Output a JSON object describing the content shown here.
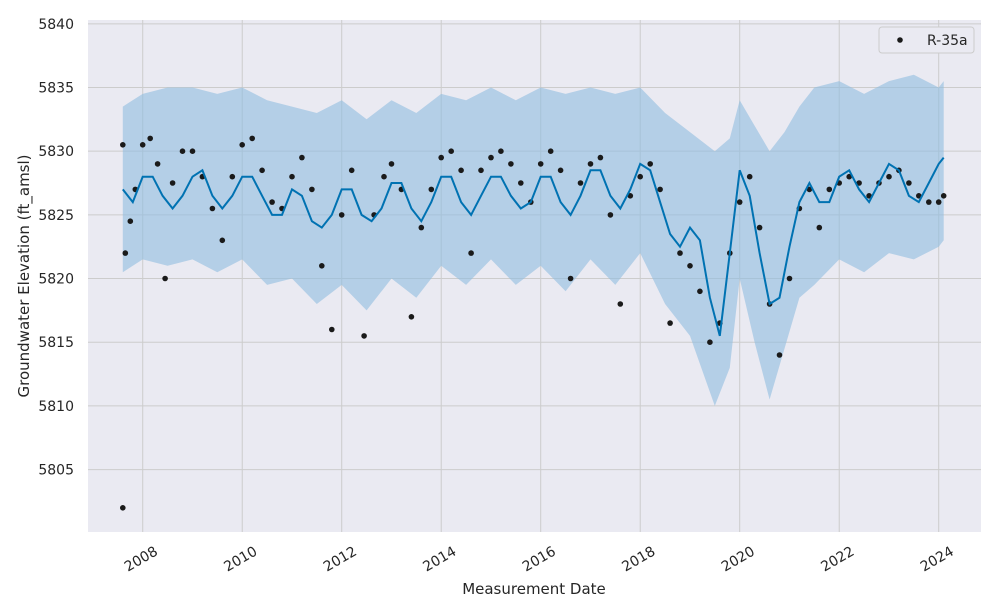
{
  "chart_data": {
    "type": "line",
    "xlabel": "Measurement Date",
    "ylabel": "Groundwater Elevation (ft_amsl)",
    "xlim": [
      2006.9,
      2024.85
    ],
    "ylim": [
      5800.1,
      5840.3
    ],
    "x_ticks": [
      {
        "value": 2008,
        "label": "2008"
      },
      {
        "value": 2010,
        "label": "2010"
      },
      {
        "value": 2012,
        "label": "2012"
      },
      {
        "value": 2014,
        "label": "2014"
      },
      {
        "value": 2016,
        "label": "2016"
      },
      {
        "value": 2018,
        "label": "2018"
      },
      {
        "value": 2020,
        "label": "2020"
      },
      {
        "value": 2022,
        "label": "2022"
      },
      {
        "value": 2024,
        "label": "2024"
      }
    ],
    "y_ticks": [
      {
        "value": 5805,
        "label": "5805"
      },
      {
        "value": 5810,
        "label": "5810"
      },
      {
        "value": 5815,
        "label": "5815"
      },
      {
        "value": 5820,
        "label": "5820"
      },
      {
        "value": 5825,
        "label": "5825"
      },
      {
        "value": 5830,
        "label": "5830"
      },
      {
        "value": 5835,
        "label": "5835"
      },
      {
        "value": 5840,
        "label": "5840"
      }
    ],
    "grid": true,
    "legend_position": "top-right",
    "colors": {
      "background": "#eaeaf2",
      "grid": "#cccccc",
      "forecast": "#0072b2",
      "band": "#8fbde0",
      "observed": "#1a1a1a"
    },
    "series": [
      {
        "name": "R-35a",
        "kind": "observed",
        "x": [
          2007.6,
          2007.65,
          2007.75,
          2007.85,
          2008.0,
          2008.15,
          2008.3,
          2008.45,
          2008.6,
          2008.8,
          2009.0,
          2009.2,
          2009.4,
          2009.6,
          2009.8,
          2010.0,
          2010.2,
          2010.4,
          2010.6,
          2010.8,
          2011.0,
          2011.2,
          2011.4,
          2011.6,
          2011.8,
          2012.0,
          2012.2,
          2012.45,
          2012.65,
          2012.85,
          2013.0,
          2013.2,
          2013.4,
          2013.6,
          2013.8,
          2014.0,
          2014.2,
          2014.4,
          2014.6,
          2014.8,
          2015.0,
          2015.2,
          2015.4,
          2015.6,
          2015.8,
          2016.0,
          2016.2,
          2016.4,
          2016.6,
          2016.8,
          2017.0,
          2017.2,
          2017.4,
          2017.6,
          2017.8,
          2018.0,
          2018.2,
          2018.4,
          2018.6,
          2018.8,
          2019.0,
          2019.2,
          2019.4,
          2019.6,
          2019.8,
          2020.0,
          2020.2,
          2020.4,
          2020.6,
          2020.8,
          2021.0,
          2021.2,
          2021.4,
          2021.6,
          2021.8,
          2022.0,
          2022.2,
          2022.4,
          2022.6,
          2022.8,
          2023.0,
          2023.2,
          2023.4,
          2023.6,
          2023.8,
          2024.0,
          2024.1
        ],
        "values": [
          5830.5,
          5822.0,
          5824.5,
          5827.0,
          5830.5,
          5831.0,
          5829.0,
          5820.0,
          5827.5,
          5830.0,
          5830.0,
          5828.0,
          5825.5,
          5823.0,
          5828.0,
          5830.5,
          5831.0,
          5828.5,
          5826.0,
          5825.5,
          5828.0,
          5829.5,
          5827.0,
          5821.0,
          5816.0,
          5825.0,
          5828.5,
          5815.5,
          5825.0,
          5828.0,
          5829.0,
          5827.0,
          5817.0,
          5824.0,
          5827.0,
          5829.5,
          5830.0,
          5828.5,
          5822.0,
          5828.5,
          5829.5,
          5830.0,
          5829.0,
          5827.5,
          5826.0,
          5829.0,
          5830.0,
          5828.5,
          5820.0,
          5827.5,
          5829.0,
          5829.5,
          5825.0,
          5818.0,
          5826.5,
          5828.0,
          5829.0,
          5827.0,
          5816.5,
          5822.0,
          5821.0,
          5819.0,
          5815.0,
          5816.5,
          5822.0,
          5826.0,
          5828.0,
          5824.0,
          5818.0,
          5814.0,
          5820.0,
          5825.5,
          5827.0,
          5824.0,
          5827.0,
          5827.5,
          5828.0,
          5827.5,
          5826.5,
          5827.5,
          5828.0,
          5828.5,
          5827.5,
          5826.5,
          5826.0,
          5826.0,
          5826.5
        ]
      },
      {
        "name": "",
        "kind": "forecast",
        "x": [
          2007.6,
          2007.8,
          2008.0,
          2008.2,
          2008.4,
          2008.6,
          2008.8,
          2009.0,
          2009.2,
          2009.4,
          2009.6,
          2009.8,
          2010.0,
          2010.2,
          2010.4,
          2010.6,
          2010.8,
          2011.0,
          2011.2,
          2011.4,
          2011.6,
          2011.8,
          2012.0,
          2012.2,
          2012.4,
          2012.6,
          2012.8,
          2013.0,
          2013.2,
          2013.4,
          2013.6,
          2013.8,
          2014.0,
          2014.2,
          2014.4,
          2014.6,
          2014.8,
          2015.0,
          2015.2,
          2015.4,
          2015.6,
          2015.8,
          2016.0,
          2016.2,
          2016.4,
          2016.6,
          2016.8,
          2017.0,
          2017.2,
          2017.4,
          2017.6,
          2017.8,
          2018.0,
          2018.2,
          2018.4,
          2018.6,
          2018.8,
          2019.0,
          2019.2,
          2019.4,
          2019.6,
          2019.8,
          2020.0,
          2020.2,
          2020.4,
          2020.6,
          2020.8,
          2021.0,
          2021.2,
          2021.4,
          2021.6,
          2021.8,
          2022.0,
          2022.2,
          2022.4,
          2022.6,
          2022.8,
          2023.0,
          2023.2,
          2023.4,
          2023.6,
          2023.8,
          2024.0,
          2024.1
        ],
        "values": [
          5827.0,
          5826.0,
          5828.0,
          5828.0,
          5826.5,
          5825.5,
          5826.5,
          5828.0,
          5828.5,
          5826.5,
          5825.5,
          5826.5,
          5828.0,
          5828.0,
          5826.5,
          5825.0,
          5825.0,
          5827.0,
          5826.5,
          5824.5,
          5824.0,
          5825.0,
          5827.0,
          5827.0,
          5825.0,
          5824.5,
          5825.5,
          5827.5,
          5827.5,
          5825.5,
          5824.5,
          5826.0,
          5828.0,
          5828.0,
          5826.0,
          5825.0,
          5826.5,
          5828.0,
          5828.0,
          5826.5,
          5825.5,
          5826.0,
          5828.0,
          5828.0,
          5826.0,
          5825.0,
          5826.5,
          5828.5,
          5828.5,
          5826.5,
          5825.5,
          5827.0,
          5829.0,
          5828.5,
          5826.0,
          5823.5,
          5822.5,
          5824.0,
          5823.0,
          5818.5,
          5815.5,
          5822.0,
          5828.5,
          5826.5,
          5822.0,
          5818.0,
          5818.5,
          5822.5,
          5826.0,
          5827.5,
          5826.0,
          5826.0,
          5828.0,
          5828.5,
          5827.0,
          5826.0,
          5827.5,
          5829.0,
          5828.5,
          5826.5,
          5826.0,
          5827.5,
          5829.0,
          5829.5
        ]
      }
    ],
    "band": {
      "x": [
        2007.6,
        2008.0,
        2008.5,
        2009.0,
        2009.5,
        2010.0,
        2010.5,
        2011.0,
        2011.5,
        2012.0,
        2012.5,
        2013.0,
        2013.5,
        2014.0,
        2014.5,
        2015.0,
        2015.5,
        2016.0,
        2016.5,
        2017.0,
        2017.5,
        2018.0,
        2018.5,
        2019.0,
        2019.5,
        2019.8,
        2020.0,
        2020.3,
        2020.6,
        2020.9,
        2021.2,
        2021.5,
        2022.0,
        2022.5,
        2023.0,
        2023.5,
        2024.0,
        2024.1
      ],
      "upper": [
        5833.5,
        5834.5,
        5835.0,
        5835.0,
        5834.5,
        5835.0,
        5834.0,
        5833.5,
        5833.0,
        5834.0,
        5832.5,
        5834.0,
        5833.0,
        5834.5,
        5834.0,
        5835.0,
        5834.0,
        5835.0,
        5834.5,
        5835.0,
        5834.5,
        5835.0,
        5833.0,
        5831.5,
        5830.0,
        5831.0,
        5834.0,
        5832.0,
        5830.0,
        5831.5,
        5833.5,
        5835.0,
        5835.5,
        5834.5,
        5835.5,
        5836.0,
        5835.0,
        5835.5
      ],
      "lower": [
        5820.5,
        5821.5,
        5821.0,
        5821.5,
        5820.5,
        5821.5,
        5819.5,
        5820.0,
        5818.0,
        5819.5,
        5817.5,
        5820.0,
        5818.5,
        5821.0,
        5819.5,
        5821.5,
        5819.5,
        5821.0,
        5819.0,
        5821.5,
        5819.5,
        5822.0,
        5818.0,
        5815.5,
        5810.0,
        5813.0,
        5820.0,
        5815.0,
        5810.5,
        5814.5,
        5818.5,
        5819.5,
        5821.5,
        5820.5,
        5822.0,
        5821.5,
        5822.5,
        5823.0
      ]
    },
    "outlier": {
      "x": 2007.6,
      "y": 5802.0
    }
  }
}
